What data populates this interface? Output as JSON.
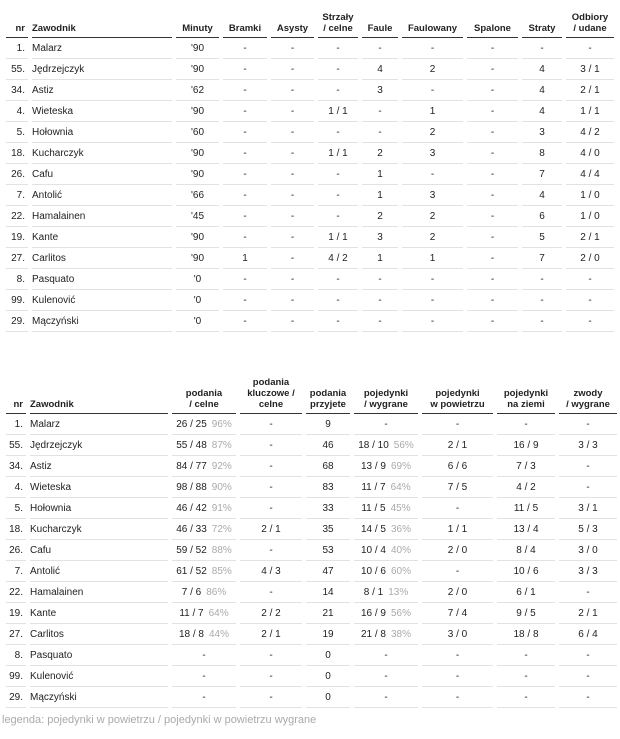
{
  "table1": {
    "headers": [
      "nr",
      "Zawodnik",
      "Minuty",
      "Bramki",
      "Asysty",
      "Strzały\n/ celne",
      "Faule",
      "Faulowany",
      "Spalone",
      "Straty",
      "Odbiory\n/ udane"
    ],
    "rows": [
      [
        "1.",
        "Malarz",
        "'90",
        "-",
        "-",
        "-",
        "-",
        "-",
        "-",
        "-",
        "-"
      ],
      [
        "55.",
        "Jędrzejczyk",
        "'90",
        "-",
        "-",
        "-",
        "4",
        "2",
        "-",
        "4",
        "3 / 1"
      ],
      [
        "34.",
        "Astiz",
        "'62",
        "-",
        "-",
        "-",
        "3",
        "-",
        "-",
        "4",
        "2 / 1"
      ],
      [
        "4.",
        "Wieteska",
        "'90",
        "-",
        "-",
        "1 / 1",
        "-",
        "1",
        "-",
        "4",
        "1 / 1"
      ],
      [
        "5.",
        "Hołownia",
        "'60",
        "-",
        "-",
        "-",
        "-",
        "2",
        "-",
        "3",
        "4 / 2"
      ],
      [
        "18.",
        "Kucharczyk",
        "'90",
        "-",
        "-",
        "1 / 1",
        "2",
        "3",
        "-",
        "8",
        "4 / 0"
      ],
      [
        "26.",
        "Cafu",
        "'90",
        "-",
        "-",
        "-",
        "1",
        "-",
        "-",
        "7",
        "4 / 4"
      ],
      [
        "7.",
        "Antolić",
        "'66",
        "-",
        "-",
        "-",
        "1",
        "3",
        "-",
        "4",
        "1 / 0"
      ],
      [
        "22.",
        "Hamalainen",
        "'45",
        "-",
        "-",
        "-",
        "2",
        "2",
        "-",
        "6",
        "1 / 0"
      ],
      [
        "19.",
        "Kante",
        "'90",
        "-",
        "-",
        "1 / 1",
        "3",
        "2",
        "-",
        "5",
        "2 / 1"
      ],
      [
        "27.",
        "Carlitos",
        "'90",
        "1",
        "-",
        "4 / 2",
        "1",
        "1",
        "-",
        "7",
        "2 / 0"
      ],
      [
        "8.",
        "Pasquato",
        "'0",
        "-",
        "-",
        "-",
        "-",
        "-",
        "-",
        "-",
        "-"
      ],
      [
        "99.",
        "Kulenović",
        "'0",
        "-",
        "-",
        "-",
        "-",
        "-",
        "-",
        "-",
        "-"
      ],
      [
        "29.",
        "Mączyński",
        "'0",
        "-",
        "-",
        "-",
        "-",
        "-",
        "-",
        "-",
        "-"
      ]
    ]
  },
  "table2": {
    "headers": [
      "nr",
      "Zawodnik",
      "podania\n/ celne",
      "podania\nkluczowe /\ncelne",
      "podania\nprzyjete",
      "pojedynki\n/ wygrane",
      "pojedynki\nw powietrzu",
      "pojedynki\nna ziemi",
      "zwody\n/ wygrane"
    ],
    "rows": [
      [
        "1.",
        "Malarz",
        [
          "26 / 25",
          "96%"
        ],
        "-",
        "9",
        "-",
        "-",
        "-",
        "-"
      ],
      [
        "55.",
        "Jędrzejczyk",
        [
          "55 / 48",
          "87%"
        ],
        "-",
        "46",
        [
          "18 / 10",
          "56%"
        ],
        "2 / 1",
        "16 / 9",
        "3 / 3"
      ],
      [
        "34.",
        "Astiz",
        [
          "84 / 77",
          "92%"
        ],
        "-",
        "68",
        [
          "13 / 9",
          "69%"
        ],
        "6 / 6",
        "7 / 3",
        "-"
      ],
      [
        "4.",
        "Wieteska",
        [
          "98 / 88",
          "90%"
        ],
        "-",
        "83",
        [
          "11 / 7",
          "64%"
        ],
        "7 / 5",
        "4 / 2",
        "-"
      ],
      [
        "5.",
        "Hołownia",
        [
          "46 / 42",
          "91%"
        ],
        "-",
        "33",
        [
          "11 / 5",
          "45%"
        ],
        "-",
        "11 / 5",
        "3 / 1"
      ],
      [
        "18.",
        "Kucharczyk",
        [
          "46 / 33",
          "72%"
        ],
        "2 / 1",
        "35",
        [
          "14 / 5",
          "36%"
        ],
        "1 / 1",
        "13 / 4",
        "5 / 3"
      ],
      [
        "26.",
        "Cafu",
        [
          "59 / 52",
          "88%"
        ],
        "-",
        "53",
        [
          "10 / 4",
          "40%"
        ],
        "2 / 0",
        "8 / 4",
        "3 / 0"
      ],
      [
        "7.",
        "Antolić",
        [
          "61 / 52",
          "85%"
        ],
        "4 / 3",
        "47",
        [
          "10 / 6",
          "60%"
        ],
        "-",
        "10 / 6",
        "3 / 3"
      ],
      [
        "22.",
        "Hamalainen",
        [
          "7 / 6",
          "86%"
        ],
        "-",
        "14",
        [
          "8 / 1",
          "13%"
        ],
        "2 / 0",
        "6 / 1",
        "-"
      ],
      [
        "19.",
        "Kante",
        [
          "11 / 7",
          "64%"
        ],
        "2 / 2",
        "21",
        [
          "16 / 9",
          "56%"
        ],
        "7 / 4",
        "9 / 5",
        "2 / 1"
      ],
      [
        "27.",
        "Carlitos",
        [
          "18 / 8",
          "44%"
        ],
        "2 / 1",
        "19",
        [
          "21 / 8",
          "38%"
        ],
        "3 / 0",
        "18 / 8",
        "6 / 4"
      ],
      [
        "8.",
        "Pasquato",
        "-",
        "-",
        "0",
        "-",
        "-",
        "-",
        "-"
      ],
      [
        "99.",
        "Kulenović",
        "-",
        "-",
        "0",
        "-",
        "-",
        "-",
        "-"
      ],
      [
        "29.",
        "Mączyński",
        "-",
        "-",
        "0",
        "-",
        "-",
        "-",
        "-"
      ]
    ]
  },
  "legend": "legenda: pojedynki w powietrzu / pojedynki w powietrzu wygrane"
}
